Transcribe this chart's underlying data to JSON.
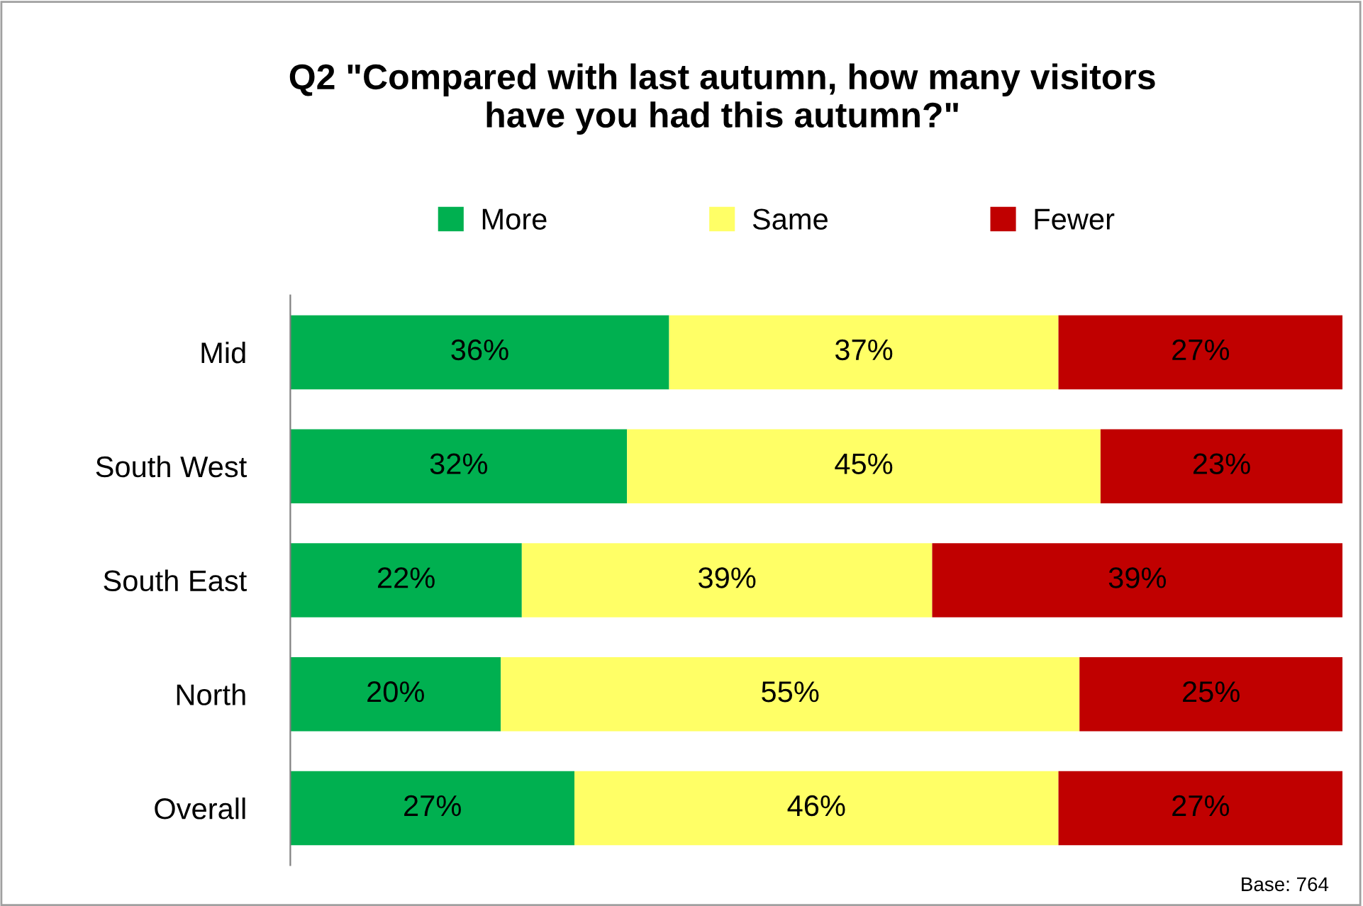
{
  "chart_data": {
    "type": "bar",
    "orientation": "horizontal",
    "stacked": true,
    "title": "Q2 \"Compared with last autumn, how many visitors\nhave you had this autumn?\"",
    "categories": [
      "Mid",
      "South West",
      "South East",
      "North",
      "Overall"
    ],
    "series": [
      {
        "name": "More",
        "color": "#00b050",
        "values": [
          36,
          32,
          22,
          20,
          27
        ],
        "value_labels": [
          "36%",
          "32%",
          "22%",
          "20%",
          "27%"
        ]
      },
      {
        "name": "Same",
        "color": "#ffff66",
        "values": [
          37,
          45,
          39,
          55,
          46
        ],
        "value_labels": [
          "37%",
          "45%",
          "39%",
          "55%",
          "46%"
        ]
      },
      {
        "name": "Fewer",
        "color": "#c00000",
        "values": [
          27,
          23,
          39,
          25,
          27
        ],
        "value_labels": [
          "27%",
          "23%",
          "39%",
          "25%",
          "27%"
        ]
      }
    ],
    "legend": "top",
    "grid": false,
    "tick_labels": "y",
    "annotations": [
      "Base: 764"
    ]
  }
}
